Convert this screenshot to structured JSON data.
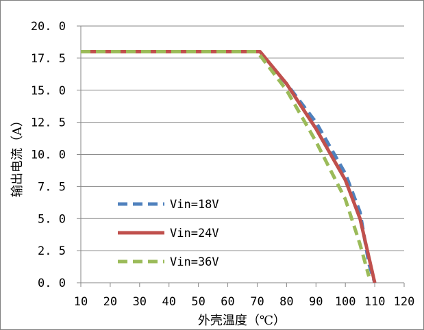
{
  "chart_data": {
    "type": "line",
    "xlabel": "外壳温度（℃）",
    "ylabel": "输出电流（A）",
    "xlim": [
      10,
      120
    ],
    "ylim": [
      0,
      20
    ],
    "x_ticks": [
      "10",
      "20",
      "30",
      "40",
      "50",
      "60",
      "70",
      "80",
      "90",
      "100",
      "110",
      "120"
    ],
    "y_ticks": [
      "0. 0",
      "2. 5",
      "5. 0",
      "7. 5",
      "10. 0",
      "12. 5",
      "15. 0",
      "17. 5",
      "20. 0"
    ],
    "grid": "horizontal",
    "legend_position": "bottom-left",
    "series": [
      {
        "name": "Vin=18V",
        "color": "#4F81BD",
        "style": "dashed",
        "points": [
          [
            10,
            18
          ],
          [
            70,
            18
          ],
          [
            80,
            15.5
          ],
          [
            90,
            12.5
          ],
          [
            100,
            8.5
          ],
          [
            105,
            5.5
          ],
          [
            108,
            1.5
          ],
          [
            110,
            0
          ]
        ]
      },
      {
        "name": "Vin=24V",
        "color": "#C0504D",
        "style": "solid",
        "points": [
          [
            10,
            18
          ],
          [
            71,
            18
          ],
          [
            80,
            15.5
          ],
          [
            90,
            12
          ],
          [
            100,
            8
          ],
          [
            105,
            5
          ],
          [
            108,
            2
          ],
          [
            110,
            0
          ]
        ]
      },
      {
        "name": "Vin=36V",
        "color": "#9BBB59",
        "style": "dashed",
        "points": [
          [
            10,
            18
          ],
          [
            70,
            18
          ],
          [
            80,
            15
          ],
          [
            90,
            11
          ],
          [
            100,
            6.5
          ],
          [
            105,
            3
          ],
          [
            108,
            0.5
          ]
        ]
      }
    ]
  }
}
